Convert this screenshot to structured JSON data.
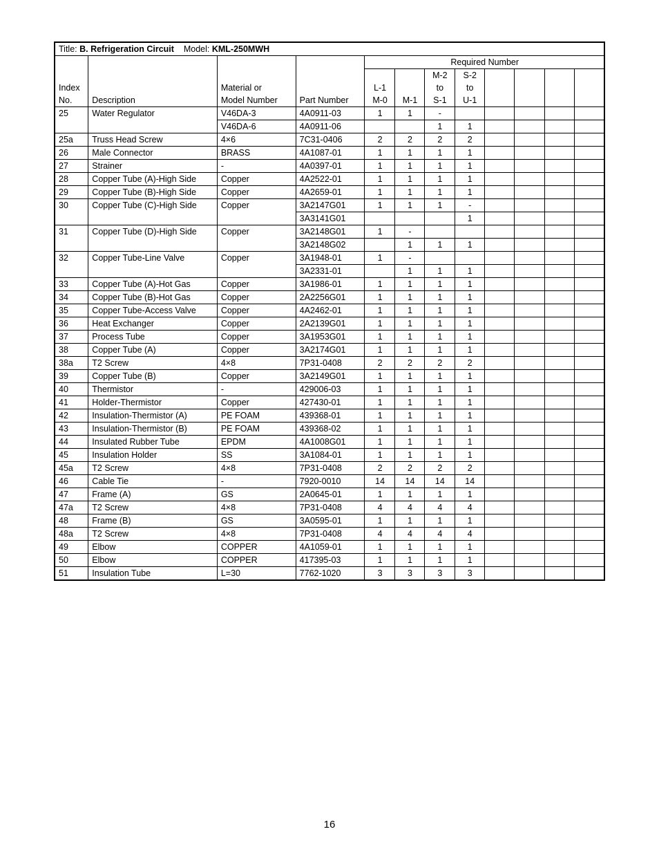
{
  "title_prefix": "Title: ",
  "title_bold": "B. Refrigeration Circuit",
  "model_prefix": "    Model: ",
  "model_bold": "KML-250MWH",
  "required_number_label": "Required Number",
  "headers": {
    "index_top": "Index",
    "index_bot": "No.",
    "desc": "Description",
    "mat_top": "Material or",
    "mat_bot": "Model Number",
    "part": "Part Number",
    "q1_top": "",
    "q1_mid": "L-1",
    "q1_bot": "M-0",
    "q2_top": "",
    "q2_mid": "",
    "q2_bot": "M-1",
    "q3_top": "M-2",
    "q3_mid": "to",
    "q3_bot": "S-1",
    "q4_top": "S-2",
    "q4_mid": "to",
    "q4_bot": "U-1"
  },
  "rows": [
    {
      "idx": "25",
      "desc": "Water Regulator",
      "mat": "V46DA-3",
      "part": "4A0911-03",
      "q": [
        "1",
        "1",
        "-",
        ""
      ]
    },
    {
      "idx": "",
      "desc": "",
      "mat": "V46DA-6",
      "part": "4A0911-06",
      "q": [
        "",
        "",
        "1",
        "1"
      ]
    },
    {
      "idx": "25a",
      "desc": "Truss Head Screw",
      "mat": "4×6",
      "part": "7C31-0406",
      "q": [
        "2",
        "2",
        "2",
        "2"
      ]
    },
    {
      "idx": "26",
      "desc": "Male Connector",
      "mat": "BRASS",
      "part": "4A1087-01",
      "q": [
        "1",
        "1",
        "1",
        "1"
      ]
    },
    {
      "idx": "27",
      "desc": "Strainer",
      "mat": "-",
      "part": "4A0397-01",
      "q": [
        "1",
        "1",
        "1",
        "1"
      ]
    },
    {
      "idx": "28",
      "desc": "Copper Tube (A)-High Side",
      "mat": "Copper",
      "part": "4A2522-01",
      "q": [
        "1",
        "1",
        "1",
        "1"
      ]
    },
    {
      "idx": "29",
      "desc": "Copper Tube (B)-High Side",
      "mat": "Copper",
      "part": "4A2659-01",
      "q": [
        "1",
        "1",
        "1",
        "1"
      ]
    },
    {
      "idx": "30",
      "desc": "Copper Tube (C)-High Side",
      "mat": "Copper",
      "part": "3A2147G01",
      "q": [
        "1",
        "1",
        "1",
        "-"
      ]
    },
    {
      "idx": "",
      "desc": "",
      "mat": "",
      "part": "3A3141G01",
      "q": [
        "",
        "",
        "",
        "1"
      ]
    },
    {
      "idx": "31",
      "desc": "Copper Tube (D)-High Side",
      "mat": "Copper",
      "part": "3A2148G01",
      "q": [
        "1",
        "-",
        "",
        ""
      ]
    },
    {
      "idx": "",
      "desc": "",
      "mat": "",
      "part": "3A2148G02",
      "q": [
        "",
        "1",
        "1",
        "1"
      ]
    },
    {
      "idx": "32",
      "desc": "Copper Tube-Line Valve",
      "mat": "Copper",
      "part": "3A1948-01",
      "q": [
        "1",
        "-",
        "",
        ""
      ]
    },
    {
      "idx": "",
      "desc": "",
      "mat": "",
      "part": "3A2331-01",
      "q": [
        "",
        "1",
        "1",
        "1"
      ]
    },
    {
      "idx": "33",
      "desc": "Copper Tube (A)-Hot Gas",
      "mat": "Copper",
      "part": "3A1986-01",
      "q": [
        "1",
        "1",
        "1",
        "1"
      ]
    },
    {
      "idx": "34",
      "desc": "Copper Tube (B)-Hot Gas",
      "mat": "Copper",
      "part": "2A2256G01",
      "q": [
        "1",
        "1",
        "1",
        "1"
      ]
    },
    {
      "idx": "35",
      "desc": "Copper Tube-Access Valve",
      "mat": "Copper",
      "part": "4A2462-01",
      "q": [
        "1",
        "1",
        "1",
        "1"
      ]
    },
    {
      "idx": "36",
      "desc": "Heat Exchanger",
      "mat": "Copper",
      "part": "2A2139G01",
      "q": [
        "1",
        "1",
        "1",
        "1"
      ]
    },
    {
      "idx": "37",
      "desc": "Process Tube",
      "mat": "Copper",
      "part": "3A1953G01",
      "q": [
        "1",
        "1",
        "1",
        "1"
      ]
    },
    {
      "idx": "38",
      "desc": "Copper Tube (A)",
      "mat": "Copper",
      "part": "3A2174G01",
      "q": [
        "1",
        "1",
        "1",
        "1"
      ]
    },
    {
      "idx": "38a",
      "desc": "T2 Screw",
      "mat": "4×8",
      "part": "7P31-0408",
      "q": [
        "2",
        "2",
        "2",
        "2"
      ]
    },
    {
      "idx": "39",
      "desc": "Copper Tube (B)",
      "mat": "Copper",
      "part": "3A2149G01",
      "q": [
        "1",
        "1",
        "1",
        "1"
      ]
    },
    {
      "idx": "40",
      "desc": "Thermistor",
      "mat": "-",
      "part": "429006-03",
      "q": [
        "1",
        "1",
        "1",
        "1"
      ]
    },
    {
      "idx": "41",
      "desc": "Holder-Thermistor",
      "mat": "Copper",
      "part": "427430-01",
      "q": [
        "1",
        "1",
        "1",
        "1"
      ]
    },
    {
      "idx": "42",
      "desc": "Insulation-Thermistor (A)",
      "mat": "PE FOAM",
      "part": "439368-01",
      "q": [
        "1",
        "1",
        "1",
        "1"
      ]
    },
    {
      "idx": "43",
      "desc": "Insulation-Thermistor (B)",
      "mat": "PE FOAM",
      "part": "439368-02",
      "q": [
        "1",
        "1",
        "1",
        "1"
      ]
    },
    {
      "idx": "44",
      "desc": "Insulated Rubber Tube",
      "mat": "EPDM",
      "part": "4A1008G01",
      "q": [
        "1",
        "1",
        "1",
        "1"
      ]
    },
    {
      "idx": "45",
      "desc": "Insulation Holder",
      "mat": "SS",
      "part": "3A1084-01",
      "q": [
        "1",
        "1",
        "1",
        "1"
      ]
    },
    {
      "idx": "45a",
      "desc": "T2 Screw",
      "mat": "4×8",
      "part": "7P31-0408",
      "q": [
        "2",
        "2",
        "2",
        "2"
      ]
    },
    {
      "idx": "46",
      "desc": "Cable Tie",
      "mat": "-",
      "part": "7920-0010",
      "q": [
        "14",
        "14",
        "14",
        "14"
      ]
    },
    {
      "idx": "47",
      "desc": "Frame (A)",
      "mat": "GS",
      "part": "2A0645-01",
      "q": [
        "1",
        "1",
        "1",
        "1"
      ]
    },
    {
      "idx": "47a",
      "desc": "T2 Screw",
      "mat": "4×8",
      "part": "7P31-0408",
      "q": [
        "4",
        "4",
        "4",
        "4"
      ]
    },
    {
      "idx": "48",
      "desc": "Frame (B)",
      "mat": "GS",
      "part": "3A0595-01",
      "q": [
        "1",
        "1",
        "1",
        "1"
      ]
    },
    {
      "idx": "48a",
      "desc": "T2 Screw",
      "mat": "4×8",
      "part": "7P31-0408",
      "q": [
        "4",
        "4",
        "4",
        "4"
      ]
    },
    {
      "idx": "49",
      "desc": "Elbow",
      "mat": "COPPER",
      "part": "4A1059-01",
      "q": [
        "1",
        "1",
        "1",
        "1"
      ]
    },
    {
      "idx": "50",
      "desc": "Elbow",
      "mat": "COPPER",
      "part": "417395-03",
      "q": [
        "1",
        "1",
        "1",
        "1"
      ]
    },
    {
      "idx": "51",
      "desc": "Insulation Tube",
      "mat": "L=30",
      "part": "7762-1020",
      "q": [
        "3",
        "3",
        "3",
        "3"
      ]
    }
  ],
  "spans": {
    "1": {
      "idx": 2,
      "desc": 2,
      "mat": 1
    },
    "8": {
      "idx": 2,
      "desc": 2,
      "mat": 2
    },
    "10": {
      "idx": 2,
      "desc": 2,
      "mat": 2
    },
    "12": {
      "idx": 2,
      "desc": 2,
      "mat": 2
    }
  },
  "page_number": "16"
}
